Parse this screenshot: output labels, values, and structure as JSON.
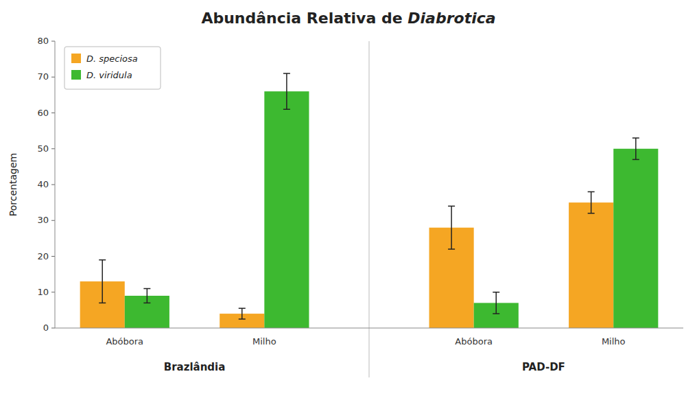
{
  "chart_data": {
    "type": "bar",
    "title": "Abundância Relativa de Diabrotica",
    "y_label": "Porcentagem",
    "categories": [
      "Abóbora",
      "Milho",
      "Abóbora",
      "Milho"
    ],
    "groups": [
      "Brazlândia",
      "PAD-DF"
    ],
    "series": [
      {
        "name": "D. speciosa",
        "color": "#F5A623",
        "values": [
          13,
          4,
          28,
          35
        ],
        "errors": [
          6,
          1.5,
          6,
          3
        ]
      },
      {
        "name": "D. viridula",
        "color": "#3DB930",
        "values": [
          9,
          66,
          7,
          50
        ],
        "errors": [
          2,
          5,
          3,
          3
        ]
      }
    ],
    "ylim": [
      0,
      80
    ],
    "yticks": [
      0,
      10,
      20,
      30,
      40,
      50,
      60,
      70,
      80
    ],
    "grid": false,
    "legend": "upper left"
  }
}
